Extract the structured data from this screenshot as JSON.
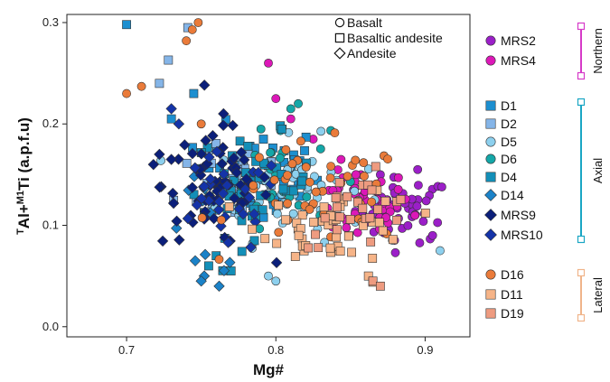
{
  "chart_data": {
    "type": "scatter",
    "title": "",
    "xlabel": "Mg#",
    "ylabel_main": "Al+",
    "ylabel_sup1": "T",
    "ylabel_sup2": "M1",
    "ylabel_tail": "Ti (a.p.f.u)",
    "xlim": [
      0.66,
      0.93
    ],
    "ylim": [
      -0.01,
      0.308
    ],
    "xticks": [
      0.7,
      0.8,
      0.9
    ],
    "yticks": [
      0.0,
      0.1,
      0.2,
      0.3
    ],
    "xtick_labels": [
      "0.7",
      "0.8",
      "0.9"
    ],
    "ytick_labels": [
      "0.0",
      "0.1",
      "0.2",
      "0.3"
    ],
    "grid": false,
    "shape_legend": [
      {
        "shape": "circle",
        "label": "Basalt"
      },
      {
        "shape": "square",
        "label": "Basaltic andesite"
      },
      {
        "shape": "diamond",
        "label": "Andesite"
      }
    ],
    "groups": [
      {
        "label": "Northern",
        "color": "#d63ac8",
        "members": [
          "MRS2",
          "MRS4"
        ]
      },
      {
        "label": "Axial",
        "color": "#1aa6c4",
        "members": [
          "D1",
          "D2",
          "D5",
          "D6",
          "D4",
          "D14",
          "MRS9",
          "MRS10"
        ]
      },
      {
        "label": "Lateral",
        "color": "#f0b48a",
        "members": [
          "D16",
          "D11",
          "D19"
        ]
      }
    ],
    "series": [
      {
        "name": "MRS2",
        "color": "#9b1fc8",
        "shape": "circle",
        "center": [
          0.885,
          0.115
        ],
        "spread": [
          0.016,
          0.016
        ],
        "n": 55,
        "extra": [
          [
            0.895,
            0.155
          ],
          [
            0.87,
            0.15
          ],
          [
            0.905,
            0.09
          ]
        ]
      },
      {
        "name": "MRS4",
        "color": "#dc18b8",
        "shape": "circle",
        "center": [
          0.855,
          0.12
        ],
        "spread": [
          0.018,
          0.018
        ],
        "n": 40,
        "extra": [
          [
            0.795,
            0.26
          ],
          [
            0.8,
            0.225
          ],
          [
            0.81,
            0.205
          ],
          [
            0.825,
            0.185
          ]
        ]
      },
      {
        "name": "D1",
        "color": "#1d8fd0",
        "shape": "square",
        "center": [
          0.79,
          0.15
        ],
        "spread": [
          0.02,
          0.025
        ],
        "n": 45,
        "extra": [
          [
            0.7,
            0.298
          ],
          [
            0.745,
            0.23
          ],
          [
            0.73,
            0.205
          ]
        ]
      },
      {
        "name": "D2",
        "color": "#85b5e8",
        "shape": "square",
        "center": [
          0.775,
          0.15
        ],
        "spread": [
          0.02,
          0.03
        ],
        "n": 30,
        "extra": [
          [
            0.728,
            0.263
          ],
          [
            0.741,
            0.295
          ],
          [
            0.722,
            0.24
          ]
        ]
      },
      {
        "name": "D5",
        "color": "#8dd0ee",
        "shape": "circle",
        "center": [
          0.81,
          0.135
        ],
        "spread": [
          0.025,
          0.025
        ],
        "n": 50,
        "extra": [
          [
            0.795,
            0.05
          ],
          [
            0.8,
            0.045
          ],
          [
            0.91,
            0.075
          ]
        ]
      },
      {
        "name": "D6",
        "color": "#14a7a8",
        "shape": "circle",
        "center": [
          0.8,
          0.15
        ],
        "spread": [
          0.018,
          0.025
        ],
        "n": 25,
        "extra": [
          [
            0.815,
            0.22
          ],
          [
            0.81,
            0.215
          ],
          [
            0.79,
            0.195
          ]
        ]
      },
      {
        "name": "D4",
        "color": "#138fb8",
        "shape": "square",
        "center": [
          0.785,
          0.14
        ],
        "spread": [
          0.02,
          0.025
        ],
        "n": 45,
        "extra": [
          [
            0.755,
            0.06
          ],
          [
            0.76,
            0.07
          ],
          [
            0.77,
            0.055
          ]
        ]
      },
      {
        "name": "D14",
        "color": "#1b82c8",
        "shape": "diamond",
        "center": [
          0.755,
          0.1
        ],
        "spread": [
          0.015,
          0.025
        ],
        "n": 10,
        "extra": [
          [
            0.746,
            0.065
          ],
          [
            0.752,
            0.05
          ],
          [
            0.75,
            0.045
          ],
          [
            0.762,
            0.04
          ]
        ]
      },
      {
        "name": "MRS9",
        "color": "#0b1f7a",
        "shape": "diamond",
        "center": [
          0.76,
          0.14
        ],
        "spread": [
          0.018,
          0.03
        ],
        "n": 70,
        "extra": [
          [
            0.718,
            0.16
          ],
          [
            0.722,
            0.17
          ],
          [
            0.73,
            0.165
          ]
        ]
      },
      {
        "name": "MRS10",
        "color": "#1433a8",
        "shape": "diamond",
        "center": [
          0.765,
          0.12
        ],
        "spread": [
          0.02,
          0.025
        ],
        "n": 30,
        "extra": [
          [
            0.73,
            0.215
          ],
          [
            0.735,
            0.2
          ]
        ]
      },
      {
        "name": "D16",
        "color": "#ea7b3a",
        "shape": "circle",
        "center": [
          0.83,
          0.13
        ],
        "spread": [
          0.03,
          0.025
        ],
        "n": 45,
        "extra": [
          [
            0.7,
            0.23
          ],
          [
            0.71,
            0.237
          ],
          [
            0.74,
            0.282
          ],
          [
            0.744,
            0.293
          ],
          [
            0.748,
            0.3
          ],
          [
            0.75,
            0.2
          ]
        ]
      },
      {
        "name": "D11",
        "color": "#f6b488",
        "shape": "square",
        "center": [
          0.84,
          0.1
        ],
        "spread": [
          0.025,
          0.018
        ],
        "n": 45,
        "extra": [
          [
            0.862,
            0.05
          ],
          [
            0.865,
            0.044
          ],
          [
            0.82,
            0.08
          ]
        ]
      },
      {
        "name": "D19",
        "color": "#ee9b80",
        "shape": "square",
        "center": [
          0.855,
          0.115
        ],
        "spread": [
          0.02,
          0.018
        ],
        "n": 25,
        "extra": [
          [
            0.865,
            0.045
          ],
          [
            0.87,
            0.04
          ]
        ]
      }
    ]
  }
}
